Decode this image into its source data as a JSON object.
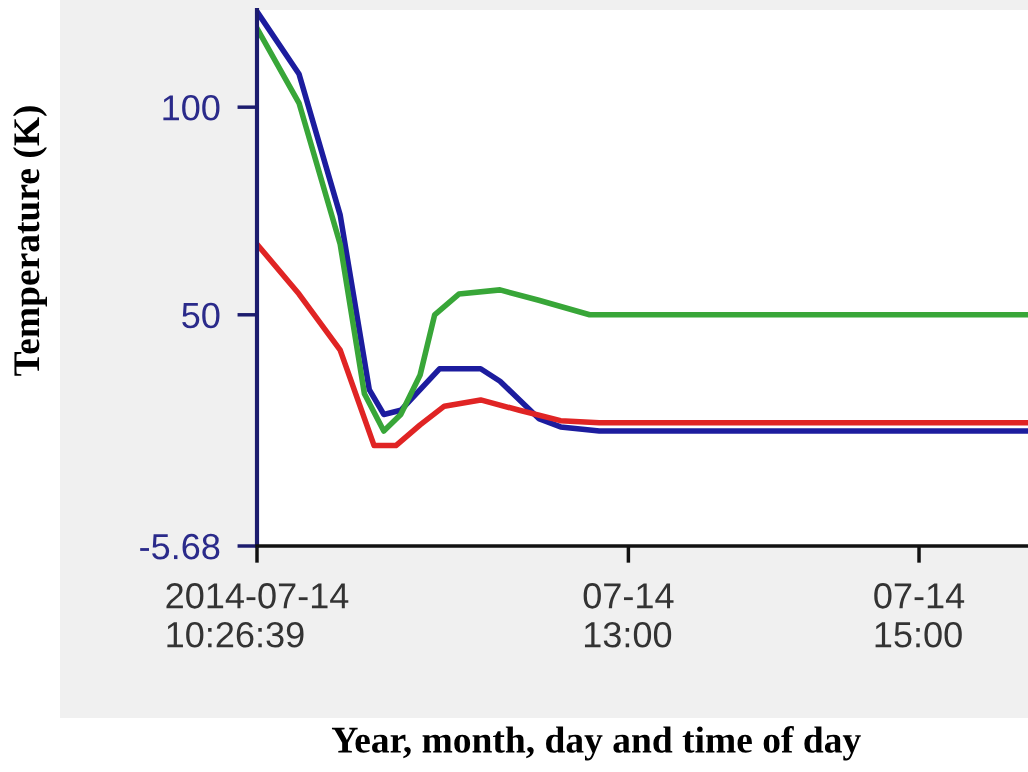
{
  "chart_data": {
    "type": "line",
    "xlabel": "Year, month, day and time of day",
    "ylabel": "Temperature (K)",
    "xlim": [
      "2014-07-14T10:26:39",
      "2014-07-14T15:45"
    ],
    "ylim": [
      -5.68,
      123.4
    ],
    "xticks": [
      {
        "value": "2014-07-14T10:26:39",
        "label": "2014-07-14\n10:26:39"
      },
      {
        "value": "2014-07-14T13:00",
        "label": "07-14\n13:00"
      },
      {
        "value": "2014-07-14T15:00",
        "label": "07-14\n15:00"
      }
    ],
    "yticks": [
      -5.68,
      50,
      100
    ],
    "grid": false,
    "legend": false,
    "marker": "none",
    "line_style": "solid",
    "series": [
      {
        "color": "#1c1c9e",
        "x": [
          "2014-07-14T10:26:39",
          "2014-07-14T10:44",
          "2014-07-14T11:01",
          "2014-07-14T11:13",
          "2014-07-14T11:19",
          "2014-07-14T11:26",
          "2014-07-14T11:34",
          "2014-07-14T11:42",
          "2014-07-14T11:59",
          "2014-07-14T12:07",
          "2014-07-14T12:23",
          "2014-07-14T12:32",
          "2014-07-14T12:48",
          "2014-07-14T15:45"
        ],
        "values": [
          123,
          108,
          74,
          32,
          26,
          27,
          32,
          37,
          37,
          34,
          25,
          23,
          22,
          22
        ]
      },
      {
        "color": "#38a638",
        "x": [
          "2014-07-14T10:26:39",
          "2014-07-14T10:44",
          "2014-07-14T11:01",
          "2014-07-14T11:11",
          "2014-07-14T11:19",
          "2014-07-14T11:26",
          "2014-07-14T11:34",
          "2014-07-14T11:40",
          "2014-07-14T11:50",
          "2014-07-14T12:07",
          "2014-07-14T12:23",
          "2014-07-14T12:44",
          "2014-07-14T15:45"
        ],
        "values": [
          119,
          101,
          67,
          31,
          22,
          26,
          35.5,
          50,
          55,
          56,
          53.5,
          50,
          50
        ]
      },
      {
        "color": "#e02424",
        "x": [
          "2014-07-14T10:26:39",
          "2014-07-14T10:44",
          "2014-07-14T11:01",
          "2014-07-14T11:15",
          "2014-07-14T11:24",
          "2014-07-14T11:34",
          "2014-07-14T11:44",
          "2014-07-14T11:59",
          "2014-07-14T12:15",
          "2014-07-14T12:32",
          "2014-07-14T12:48",
          "2014-07-14T15:45"
        ],
        "values": [
          67,
          55,
          41.5,
          18.5,
          18.5,
          23.5,
          28,
          29.5,
          27,
          24.5,
          24,
          24
        ]
      }
    ]
  }
}
